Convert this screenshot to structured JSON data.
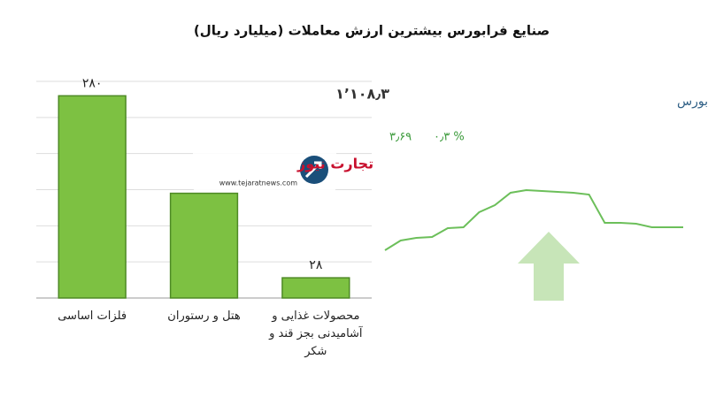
{
  "chart_data": [
    {
      "type": "bar",
      "title": "صنایع فرابورس بیشترین ارزش معاملات  (میلیارد ریال)",
      "categories": [
        "فلزات اساسی",
        "هتل و رستوران",
        "محصولات غذایی و آشامیدنی بجز قند و شکر"
      ],
      "values": [
        280,
        145,
        28
      ],
      "value_labels": [
        "۲۸۰",
        null,
        "۲۸"
      ],
      "color": "#7dc142",
      "ylim": [
        0,
        300
      ],
      "yticks": [
        0,
        50,
        100,
        150,
        200,
        250,
        300
      ],
      "grid": true
    },
    {
      "type": "line",
      "title": "کل فرابورس",
      "value_text": "۱٬۱۰۸٫۳",
      "change": "۳٫۶۹",
      "change_percent": "۰٫۳ %",
      "values": [
        7,
        18,
        21,
        22,
        32,
        33,
        50,
        58,
        72,
        75,
        74,
        73,
        72,
        70,
        38,
        38,
        37,
        33,
        33,
        33
      ],
      "ylim": [
        0,
        80
      ],
      "color": "#6cbf5a"
    }
  ],
  "watermark": {
    "name": "تجارت نیوز",
    "url": "www.tejaratnews.com"
  }
}
